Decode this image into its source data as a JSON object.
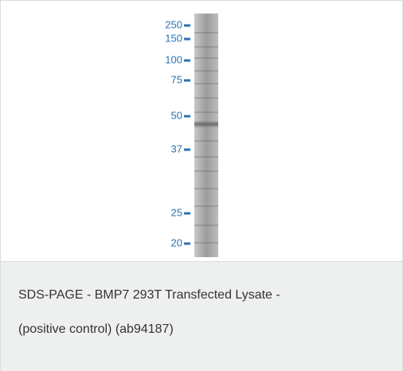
{
  "figure": {
    "markers": [
      "250",
      "150",
      "100",
      "75",
      "50",
      "37",
      "25",
      "20"
    ],
    "caption": [
      "SDS-PAGE - BMP7 293T Transfected Lysate -",
      "(positive control) (ab94187)"
    ]
  }
}
